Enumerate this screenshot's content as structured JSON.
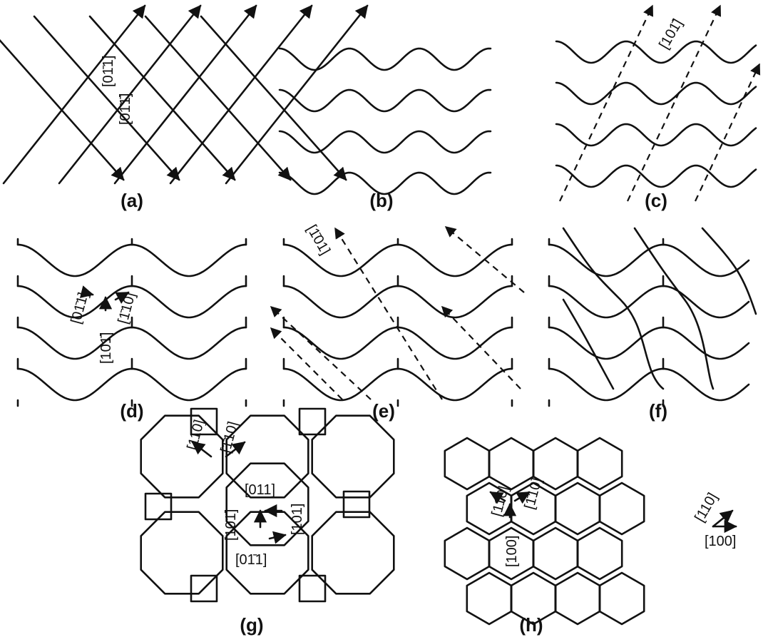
{
  "panels": [
    {
      "caption": "(a)",
      "labels": [
        "[01̄1]",
        "[01̄1̄]"
      ]
    },
    {
      "caption": "(b)",
      "labels": []
    },
    {
      "caption": "(c)",
      "labels": [
        "[101̄]"
      ]
    },
    {
      "caption": "(d)",
      "labels": [
        "[01̄1]",
        "[1̄10]",
        "[101̄]"
      ]
    },
    {
      "caption": "(e)",
      "labels": [
        "[1̄01]"
      ]
    },
    {
      "caption": "(f)",
      "labels": []
    },
    {
      "caption": "(g)",
      "labels": [
        "[110]",
        "[1̄10]",
        "[011]",
        "[101̄]",
        "[101]",
        "[01̄1]"
      ]
    },
    {
      "caption": "(h)",
      "labels": [
        "[110]",
        "[1̄10]",
        "[100]"
      ]
    }
  ],
  "axes_key": {
    "labels": [
      "[110]",
      "[100]"
    ]
  }
}
